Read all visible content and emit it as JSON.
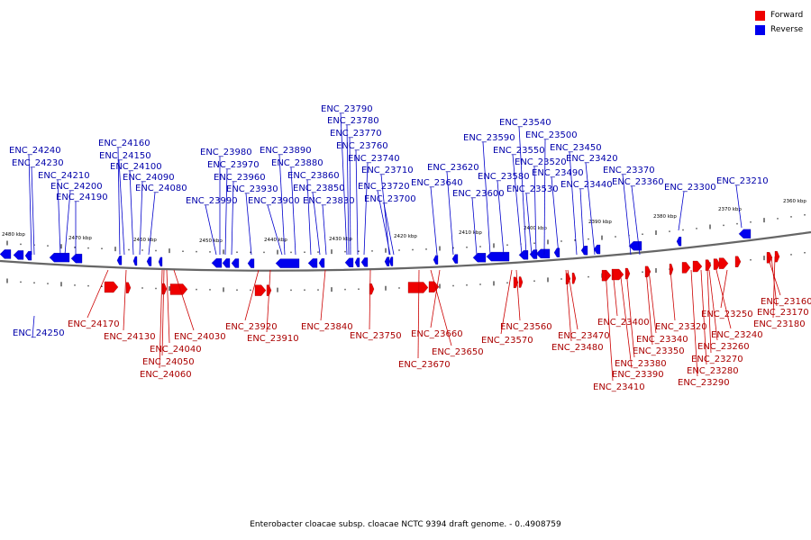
{
  "legend": [
    {
      "label": "Forward",
      "color": "#ee0000"
    },
    {
      "label": "Reverse",
      "color": "#0000ee"
    }
  ],
  "caption": "Enterobacter cloacae subsp. cloacae NCTC 9394 draft genome. - 0..4908759",
  "axis_ticks": [
    "2480 kbp",
    "2470 kbp",
    "2460 kbp",
    "2450 kbp",
    "2440 kbp",
    "2430 kbp",
    "2420 kbp",
    "2410 kbp",
    "2400 kbp",
    "2390 kbp",
    "2380 kbp",
    "2370 kbp",
    "2360 kbp"
  ],
  "reverse_genes": [
    "ENC_24240",
    "ENC_24230",
    "ENC_24210",
    "ENC_24200",
    "ENC_24190",
    "ENC_24160",
    "ENC_24150",
    "ENC_24100",
    "ENC_24090",
    "ENC_24080",
    "ENC_23990",
    "ENC_23980",
    "ENC_23970",
    "ENC_23960",
    "ENC_23930",
    "ENC_23900",
    "ENC_23890",
    "ENC_23880",
    "ENC_23860",
    "ENC_23850",
    "ENC_23830",
    "ENC_23790",
    "ENC_23780",
    "ENC_23770",
    "ENC_23760",
    "ENC_23740",
    "ENC_23720",
    "ENC_23710",
    "ENC_23700",
    "ENC_23640",
    "ENC_23620",
    "ENC_23600",
    "ENC_23590",
    "ENC_23580",
    "ENC_23550",
    "ENC_23540",
    "ENC_23530",
    "ENC_23520",
    "ENC_23500",
    "ENC_23490",
    "ENC_23450",
    "ENC_23440",
    "ENC_23420",
    "ENC_23370",
    "ENC_23360",
    "ENC_23300",
    "ENC_23210",
    "ENC_24250"
  ],
  "forward_genes": [
    "ENC_24170",
    "ENC_24130",
    "ENC_24040",
    "ENC_24050",
    "ENC_24060",
    "ENC_24030",
    "ENC_23920",
    "ENC_23910",
    "ENC_23840",
    "ENC_23750",
    "ENC_23660",
    "ENC_23650",
    "ENC_23670",
    "ENC_23560",
    "ENC_23570",
    "ENC_23470",
    "ENC_23480",
    "ENC_23400",
    "ENC_23380",
    "ENC_23390",
    "ENC_23410",
    "ENC_23350",
    "ENC_23340",
    "ENC_23320",
    "ENC_23250",
    "ENC_23240",
    "ENC_23260",
    "ENC_23270",
    "ENC_23280",
    "ENC_23290",
    "ENC_23160",
    "ENC_23170",
    "ENC_23180"
  ]
}
